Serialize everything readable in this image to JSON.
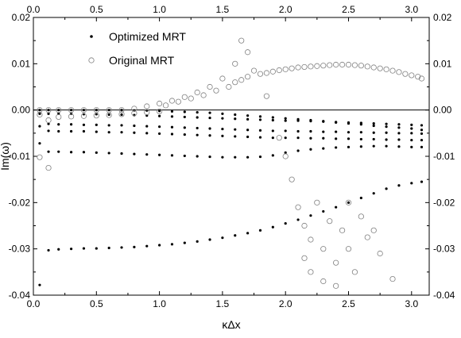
{
  "chart_data": {
    "type": "scatter",
    "xlabel": "κΔx",
    "ylabel": "Im(ω)",
    "xlim": [
      0,
      3.14
    ],
    "ylim": [
      -0.04,
      0.02
    ],
    "xticks": [
      "0.0",
      "0.5",
      "1.0",
      "1.5",
      "2.0",
      "2.5",
      "3.0"
    ],
    "yticks": [
      "-0.04",
      "-0.03",
      "-0.02",
      "-0.01",
      "0.00",
      "0.01",
      "0.02"
    ],
    "mirror_axes": "top-right",
    "grid": false,
    "legend_position": "top-left",
    "reference_line_y": 0,
    "series": [
      {
        "name": "Optimized MRT",
        "marker": "filled-dot",
        "color": "#000000",
        "points": [
          [
            0.05,
            -0.0378
          ],
          [
            0.05,
            -0.0072
          ],
          [
            0.05,
            -0.0035
          ],
          [
            0.05,
            -0.0008
          ],
          [
            0.05,
            0.0
          ],
          [
            0.12,
            -0.0303
          ],
          [
            0.12,
            -0.009
          ],
          [
            0.12,
            -0.0045
          ],
          [
            0.12,
            -0.003
          ],
          [
            0.12,
            -0.0008
          ],
          [
            0.12,
            0.0
          ],
          [
            0.2,
            -0.0301
          ],
          [
            0.2,
            -0.009
          ],
          [
            0.2,
            -0.0046
          ],
          [
            0.2,
            -0.0031
          ],
          [
            0.2,
            -0.0008
          ],
          [
            0.2,
            0.0
          ],
          [
            0.3,
            -0.03
          ],
          [
            0.3,
            -0.0091
          ],
          [
            0.3,
            -0.0046
          ],
          [
            0.3,
            -0.0031
          ],
          [
            0.3,
            -0.0008
          ],
          [
            0.3,
            0.0
          ],
          [
            0.4,
            -0.0299
          ],
          [
            0.4,
            -0.0091
          ],
          [
            0.4,
            -0.0046
          ],
          [
            0.4,
            -0.0032
          ],
          [
            0.4,
            -0.0009
          ],
          [
            0.4,
            0.0
          ],
          [
            0.5,
            -0.0299
          ],
          [
            0.5,
            -0.0092
          ],
          [
            0.5,
            -0.0047
          ],
          [
            0.5,
            -0.0032
          ],
          [
            0.5,
            -0.0009
          ],
          [
            0.5,
            0.0
          ],
          [
            0.6,
            -0.0298
          ],
          [
            0.6,
            -0.0093
          ],
          [
            0.6,
            -0.0048
          ],
          [
            0.6,
            -0.0033
          ],
          [
            0.6,
            -0.001
          ],
          [
            0.6,
            0.0
          ],
          [
            0.7,
            -0.0297
          ],
          [
            0.7,
            -0.0094
          ],
          [
            0.7,
            -0.0048
          ],
          [
            0.7,
            -0.0033
          ],
          [
            0.7,
            -0.001
          ],
          [
            0.7,
            0.0
          ],
          [
            0.8,
            -0.0296
          ],
          [
            0.8,
            -0.0095
          ],
          [
            0.8,
            -0.0049
          ],
          [
            0.8,
            -0.0034
          ],
          [
            0.8,
            -0.0011
          ],
          [
            0.8,
            -0.0001
          ],
          [
            0.9,
            -0.0294
          ],
          [
            0.9,
            -0.0096
          ],
          [
            0.9,
            -0.005
          ],
          [
            0.9,
            -0.0035
          ],
          [
            0.9,
            -0.0012
          ],
          [
            0.9,
            -0.0001
          ],
          [
            1.0,
            -0.0292
          ],
          [
            1.0,
            -0.0097
          ],
          [
            1.0,
            -0.0051
          ],
          [
            1.0,
            -0.0036
          ],
          [
            1.0,
            -0.0013
          ],
          [
            1.0,
            -0.0002
          ],
          [
            1.1,
            -0.029
          ],
          [
            1.1,
            -0.0098
          ],
          [
            1.1,
            -0.0052
          ],
          [
            1.1,
            -0.0037
          ],
          [
            1.1,
            -0.0014
          ],
          [
            1.1,
            -0.0003
          ],
          [
            1.2,
            -0.0287
          ],
          [
            1.2,
            -0.0099
          ],
          [
            1.2,
            -0.0053
          ],
          [
            1.2,
            -0.0038
          ],
          [
            1.2,
            -0.0015
          ],
          [
            1.2,
            -0.0004
          ],
          [
            1.3,
            -0.0284
          ],
          [
            1.3,
            -0.01
          ],
          [
            1.3,
            -0.0054
          ],
          [
            1.3,
            -0.0039
          ],
          [
            1.3,
            -0.0016
          ],
          [
            1.3,
            -0.0005
          ],
          [
            1.4,
            -0.028
          ],
          [
            1.4,
            -0.0101
          ],
          [
            1.4,
            -0.0055
          ],
          [
            1.4,
            -0.004
          ],
          [
            1.4,
            -0.0017
          ],
          [
            1.4,
            -0.0006
          ],
          [
            1.5,
            -0.0276
          ],
          [
            1.5,
            -0.0102
          ],
          [
            1.5,
            -0.0056
          ],
          [
            1.5,
            -0.0041
          ],
          [
            1.5,
            -0.0018
          ],
          [
            1.5,
            -0.0008
          ],
          [
            1.6,
            -0.0271
          ],
          [
            1.6,
            -0.0102
          ],
          [
            1.6,
            -0.0057
          ],
          [
            1.6,
            -0.0042
          ],
          [
            1.6,
            -0.0019
          ],
          [
            1.6,
            -0.001
          ],
          [
            1.7,
            -0.0266
          ],
          [
            1.7,
            -0.0102
          ],
          [
            1.7,
            -0.0058
          ],
          [
            1.7,
            -0.0043
          ],
          [
            1.7,
            -0.002
          ],
          [
            1.7,
            -0.0012
          ],
          [
            1.8,
            -0.026
          ],
          [
            1.8,
            -0.0101
          ],
          [
            1.8,
            -0.0059
          ],
          [
            1.8,
            -0.0044
          ],
          [
            1.8,
            -0.0021
          ],
          [
            1.8,
            -0.0014
          ],
          [
            1.9,
            -0.0253
          ],
          [
            1.9,
            -0.0098
          ],
          [
            1.9,
            -0.006
          ],
          [
            1.9,
            -0.0045
          ],
          [
            1.9,
            -0.0022
          ],
          [
            1.9,
            -0.0016
          ],
          [
            2.0,
            -0.0245
          ],
          [
            2.0,
            -0.0092
          ],
          [
            2.0,
            -0.006
          ],
          [
            2.0,
            -0.0045
          ],
          [
            2.0,
            -0.0023
          ],
          [
            2.0,
            -0.0018
          ],
          [
            2.1,
            -0.0237
          ],
          [
            2.1,
            -0.0088
          ],
          [
            2.1,
            -0.006
          ],
          [
            2.1,
            -0.0046
          ],
          [
            2.1,
            -0.0023
          ],
          [
            2.1,
            -0.002
          ],
          [
            2.2,
            -0.0228
          ],
          [
            2.2,
            -0.0085
          ],
          [
            2.2,
            -0.0061
          ],
          [
            2.2,
            -0.0046
          ],
          [
            2.2,
            -0.0024
          ],
          [
            2.2,
            -0.0022
          ],
          [
            2.3,
            -0.0219
          ],
          [
            2.3,
            -0.0083
          ],
          [
            2.3,
            -0.0061
          ],
          [
            2.3,
            -0.0047
          ],
          [
            2.3,
            -0.0025
          ],
          [
            2.3,
            -0.0024
          ],
          [
            2.4,
            -0.021
          ],
          [
            2.4,
            -0.0081
          ],
          [
            2.4,
            -0.0062
          ],
          [
            2.4,
            -0.0047
          ],
          [
            2.4,
            -0.0026
          ],
          [
            2.4,
            -0.0027
          ],
          [
            2.5,
            -0.02
          ],
          [
            2.5,
            -0.008
          ],
          [
            2.5,
            -0.0062
          ],
          [
            2.5,
            -0.0048
          ],
          [
            2.5,
            -0.0027
          ],
          [
            2.5,
            -0.0029
          ],
          [
            2.6,
            -0.019
          ],
          [
            2.6,
            -0.0079
          ],
          [
            2.6,
            -0.0063
          ],
          [
            2.6,
            -0.0048
          ],
          [
            2.6,
            -0.0028
          ],
          [
            2.6,
            -0.0031
          ],
          [
            2.7,
            -0.018
          ],
          [
            2.7,
            -0.0078
          ],
          [
            2.7,
            -0.0063
          ],
          [
            2.7,
            -0.0049
          ],
          [
            2.7,
            -0.0029
          ],
          [
            2.7,
            -0.0034
          ],
          [
            2.8,
            -0.017
          ],
          [
            2.8,
            -0.0078
          ],
          [
            2.8,
            -0.0064
          ],
          [
            2.8,
            -0.0049
          ],
          [
            2.8,
            -0.003
          ],
          [
            2.8,
            -0.0036
          ],
          [
            2.9,
            -0.0163
          ],
          [
            2.9,
            -0.0079
          ],
          [
            2.9,
            -0.0064
          ],
          [
            2.9,
            -0.005
          ],
          [
            2.9,
            -0.0031
          ],
          [
            2.9,
            -0.0038
          ],
          [
            3.0,
            -0.0158
          ],
          [
            3.0,
            -0.008
          ],
          [
            3.0,
            -0.0065
          ],
          [
            3.0,
            -0.005
          ],
          [
            3.0,
            -0.0032
          ],
          [
            3.0,
            -0.004
          ],
          [
            3.08,
            -0.0155
          ],
          [
            3.08,
            -0.008
          ],
          [
            3.08,
            -0.0065
          ],
          [
            3.08,
            -0.0051
          ],
          [
            3.08,
            -0.0033
          ],
          [
            3.08,
            -0.0043
          ]
        ]
      },
      {
        "name": "Original MRT",
        "marker": "open-circle",
        "color": "#808080",
        "points": [
          [
            0.05,
            -0.0102
          ],
          [
            0.05,
            -0.001
          ],
          [
            0.05,
            0.0
          ],
          [
            0.12,
            -0.0125
          ],
          [
            0.12,
            -0.0022
          ],
          [
            0.12,
            0.0
          ],
          [
            0.2,
            -0.0015
          ],
          [
            0.2,
            0.0
          ],
          [
            0.3,
            -0.0014
          ],
          [
            0.3,
            0.0
          ],
          [
            0.4,
            -0.0013
          ],
          [
            0.4,
            0.0
          ],
          [
            0.5,
            -0.0012
          ],
          [
            0.5,
            0.0
          ],
          [
            0.6,
            -0.0011
          ],
          [
            0.6,
            0.0
          ],
          [
            0.7,
            -0.0009
          ],
          [
            0.7,
            0.0
          ],
          [
            0.8,
            -0.0007
          ],
          [
            0.8,
            0.0003
          ],
          [
            0.9,
            -0.0005
          ],
          [
            0.9,
            0.0008
          ],
          [
            1.0,
            -0.0003
          ],
          [
            1.0,
            0.0014
          ],
          [
            1.05,
            0.001
          ],
          [
            1.1,
            0.002
          ],
          [
            1.15,
            0.0018
          ],
          [
            1.2,
            0.0028
          ],
          [
            1.25,
            0.0025
          ],
          [
            1.3,
            0.0038
          ],
          [
            1.35,
            0.0032
          ],
          [
            1.4,
            0.005
          ],
          [
            1.45,
            0.0042
          ],
          [
            1.5,
            0.0068
          ],
          [
            1.55,
            0.005
          ],
          [
            1.6,
            0.01
          ],
          [
            1.6,
            0.006
          ],
          [
            1.65,
            0.015
          ],
          [
            1.65,
            0.0065
          ],
          [
            1.7,
            0.0125
          ],
          [
            1.7,
            0.0072
          ],
          [
            1.75,
            0.0085
          ],
          [
            1.8,
            0.0078
          ],
          [
            1.85,
            0.003
          ],
          [
            1.85,
            0.008
          ],
          [
            1.9,
            0.0083
          ],
          [
            1.95,
            -0.006
          ],
          [
            1.95,
            0.0086
          ],
          [
            2.0,
            0.0088
          ],
          [
            2.0,
            -0.01
          ],
          [
            2.05,
            0.009
          ],
          [
            2.05,
            -0.015
          ],
          [
            2.1,
            0.0092
          ],
          [
            2.1,
            -0.021
          ],
          [
            2.15,
            0.0093
          ],
          [
            2.15,
            -0.025
          ],
          [
            2.15,
            -0.032
          ],
          [
            2.2,
            0.0094
          ],
          [
            2.2,
            -0.028
          ],
          [
            2.2,
            -0.035
          ],
          [
            2.25,
            0.0095
          ],
          [
            2.25,
            -0.02
          ],
          [
            2.3,
            0.0096
          ],
          [
            2.3,
            -0.03
          ],
          [
            2.3,
            -0.037
          ],
          [
            2.35,
            0.0097
          ],
          [
            2.35,
            -0.024
          ],
          [
            2.4,
            0.0098
          ],
          [
            2.4,
            -0.033
          ],
          [
            2.4,
            -0.038
          ],
          [
            2.45,
            0.0098
          ],
          [
            2.45,
            -0.026
          ],
          [
            2.5,
            0.0098
          ],
          [
            2.5,
            -0.02
          ],
          [
            2.5,
            -0.03
          ],
          [
            2.55,
            0.0097
          ],
          [
            2.55,
            -0.035
          ],
          [
            2.6,
            0.0096
          ],
          [
            2.6,
            -0.023
          ],
          [
            2.65,
            0.0094
          ],
          [
            2.65,
            -0.0275
          ],
          [
            2.7,
            0.0092
          ],
          [
            2.7,
            -0.026
          ],
          [
            2.75,
            0.009
          ],
          [
            2.75,
            -0.031
          ],
          [
            2.8,
            0.0088
          ],
          [
            2.85,
            0.0085
          ],
          [
            2.85,
            -0.0365
          ],
          [
            2.9,
            0.0082
          ],
          [
            2.95,
            0.0078
          ],
          [
            3.0,
            0.0075
          ],
          [
            3.05,
            0.0072
          ],
          [
            3.08,
            0.0068
          ]
        ]
      }
    ]
  }
}
